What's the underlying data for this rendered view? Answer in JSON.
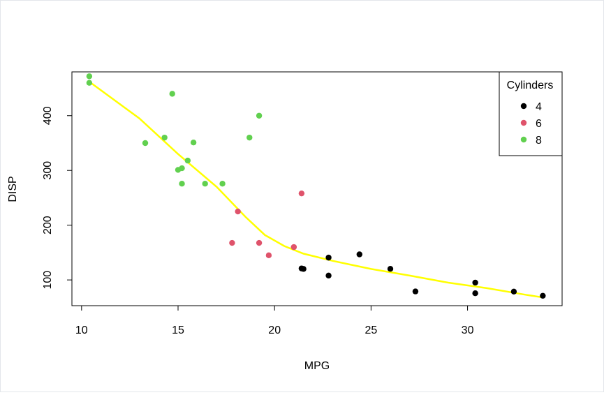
{
  "chart_data": {
    "type": "scatter",
    "title": "",
    "xlabel": "MPG",
    "ylabel": "DISP",
    "xlim": [
      9.5,
      34.9
    ],
    "ylim": [
      53,
      480
    ],
    "x_ticks": [
      10,
      15,
      20,
      25,
      30
    ],
    "y_ticks": [
      100,
      200,
      300,
      400
    ],
    "grid": false,
    "legend": {
      "title": "Cylinders",
      "position": "top-right",
      "entries": [
        {
          "label": "4",
          "color": "#000000"
        },
        {
          "label": "6",
          "color": "#DF536B"
        },
        {
          "label": "8",
          "color": "#61D04F"
        }
      ]
    },
    "series": [
      {
        "name": "4",
        "color": "#000000",
        "points": [
          [
            22.8,
            108
          ],
          [
            24.4,
            146.7
          ],
          [
            22.8,
            140.8
          ],
          [
            32.4,
            78.7
          ],
          [
            30.4,
            75.7
          ],
          [
            33.9,
            71.1
          ],
          [
            21.5,
            120.1
          ],
          [
            27.3,
            79
          ],
          [
            26,
            120.3
          ],
          [
            30.4,
            95.1
          ],
          [
            21.4,
            121
          ]
        ]
      },
      {
        "name": "6",
        "color": "#DF536B",
        "points": [
          [
            21,
            160
          ],
          [
            21,
            160
          ],
          [
            21.4,
            258
          ],
          [
            18.1,
            225
          ],
          [
            19.2,
            167.6
          ],
          [
            17.8,
            167.6
          ],
          [
            19.7,
            145
          ]
        ]
      },
      {
        "name": "8",
        "color": "#61D04F",
        "points": [
          [
            18.7,
            360
          ],
          [
            14.3,
            360
          ],
          [
            16.4,
            275.8
          ],
          [
            17.3,
            275.8
          ],
          [
            15.2,
            275.8
          ],
          [
            10.4,
            472
          ],
          [
            10.4,
            460
          ],
          [
            14.7,
            440
          ],
          [
            15.5,
            318
          ],
          [
            15.2,
            304
          ],
          [
            13.3,
            350
          ],
          [
            19.2,
            400
          ],
          [
            15.8,
            351
          ],
          [
            15,
            301
          ]
        ]
      }
    ],
    "smooth_line": {
      "color": "#FFFF00",
      "points": [
        [
          10.4,
          462
        ],
        [
          13,
          395
        ],
        [
          15,
          330
        ],
        [
          17,
          270
        ],
        [
          18.5,
          215
        ],
        [
          19.5,
          182
        ],
        [
          20.5,
          162
        ],
        [
          21.5,
          148
        ],
        [
          23,
          135
        ],
        [
          25,
          120
        ],
        [
          27,
          108
        ],
        [
          29,
          95
        ],
        [
          31,
          85
        ],
        [
          33,
          73
        ],
        [
          33.9,
          68
        ]
      ]
    }
  }
}
